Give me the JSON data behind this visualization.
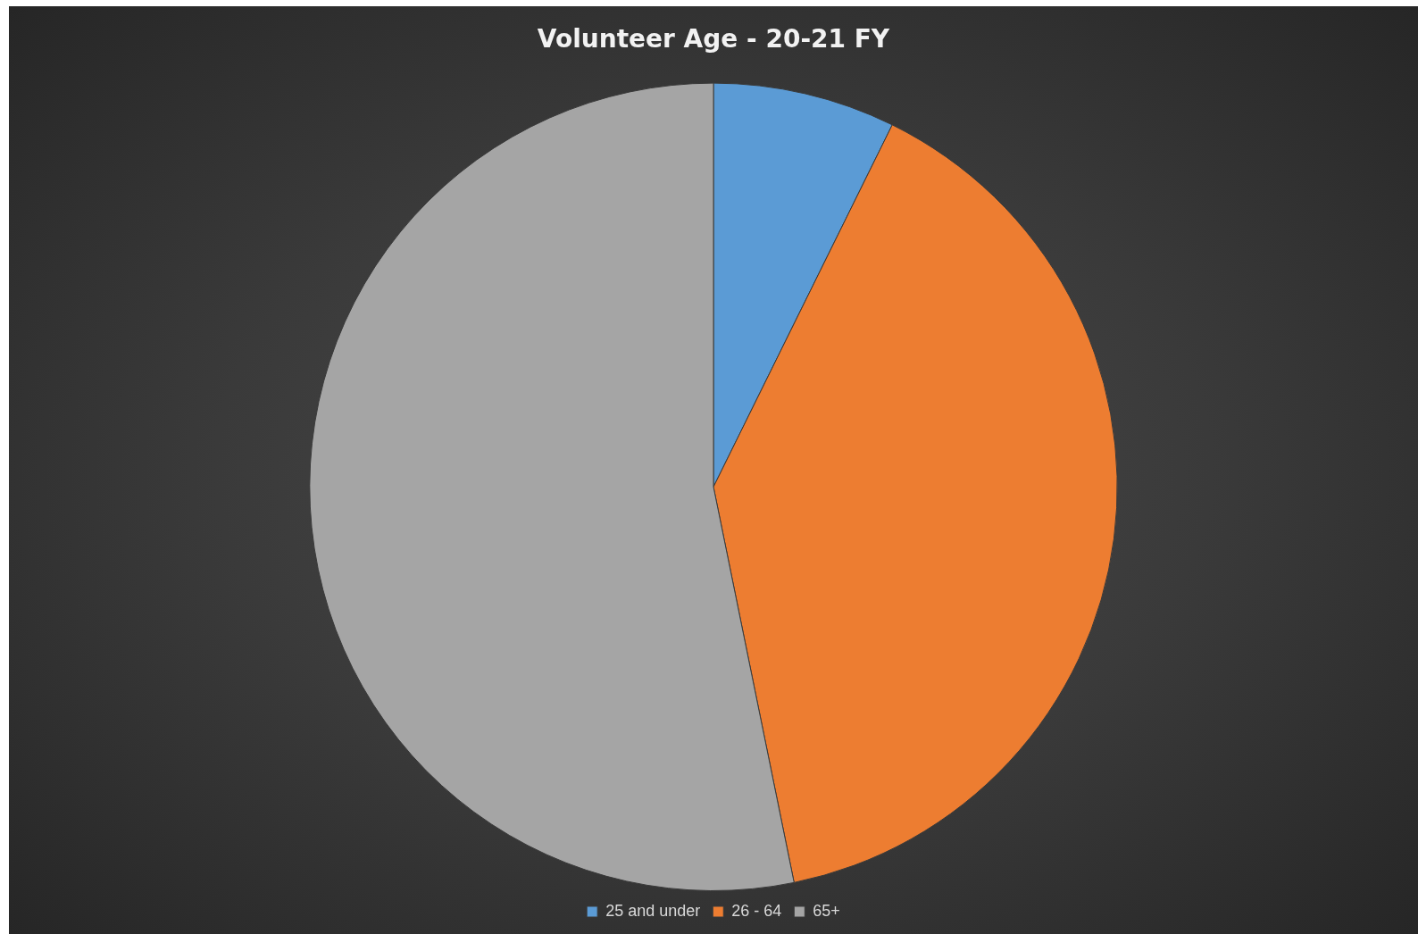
{
  "chart_data": {
    "type": "pie",
    "title": "Volunteer Age - 20-21 FY",
    "categories": [
      "25 and under",
      "26 - 64",
      "65+"
    ],
    "values": [
      7.3,
      39.5,
      53.2
    ],
    "colors": [
      "#5b9bd5",
      "#ed7d31",
      "#a5a5a5"
    ],
    "legend": "bottom"
  }
}
